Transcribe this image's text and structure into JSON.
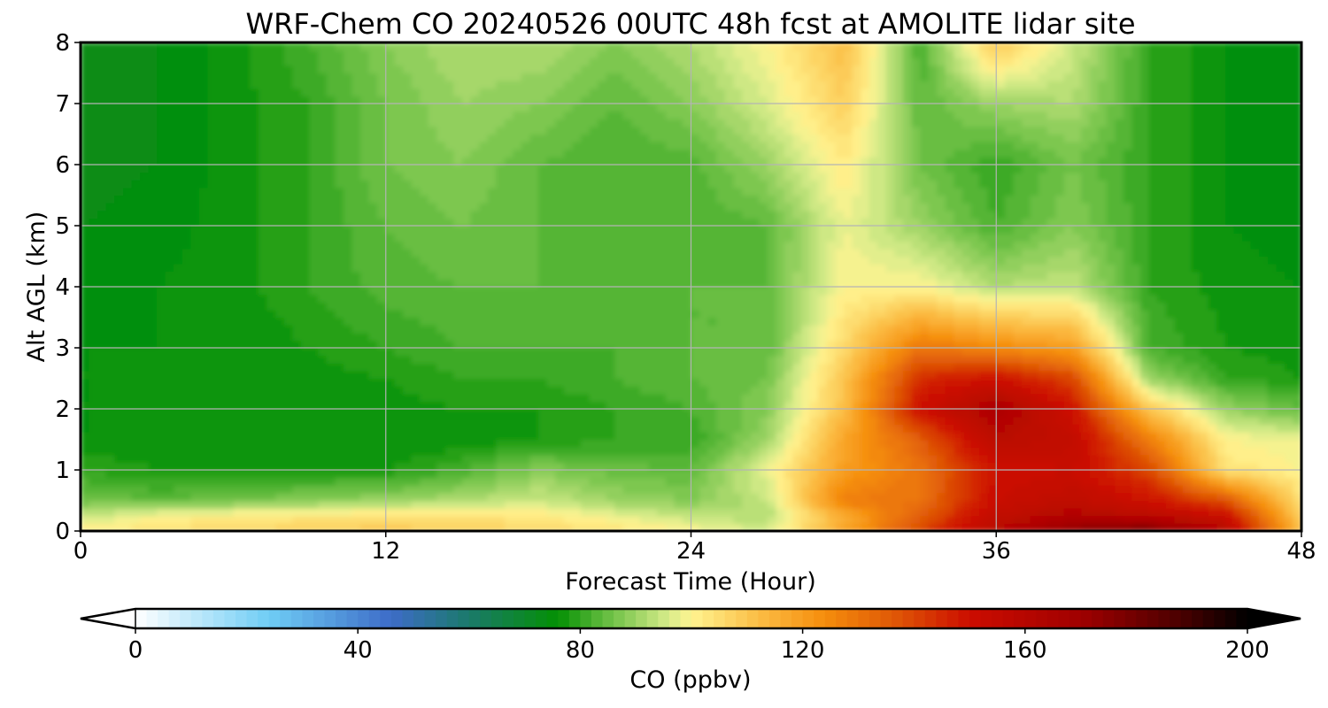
{
  "chart_data": {
    "type": "heatmap",
    "title": "WRF-Chem CO  20240526 00UTC 48h fcst at AMOLITE lidar site",
    "xlabel": "Forecast Time (Hour)",
    "ylabel": "Alt AGL (km)",
    "xlim": [
      0,
      48
    ],
    "ylim": [
      0,
      8
    ],
    "x_ticks": [
      0,
      12,
      24,
      36,
      48
    ],
    "y_ticks": [
      0,
      1,
      2,
      3,
      4,
      5,
      6,
      7,
      8
    ],
    "grid": true,
    "x_hours": [
      0,
      3,
      6,
      9,
      12,
      15,
      18,
      21,
      24,
      27,
      30,
      33,
      36,
      39,
      42,
      45,
      48
    ],
    "altitudes_km": [
      0,
      0.25,
      0.5,
      1,
      1.5,
      2,
      2.5,
      3,
      4,
      5,
      6,
      7,
      8
    ],
    "co_ppbv": [
      [
        102,
        104,
        106,
        108,
        110,
        108,
        106,
        104,
        100,
        96,
        118,
        140,
        160,
        175,
        180,
        160,
        112
      ],
      [
        94,
        100,
        102,
        103,
        104,
        104,
        102,
        98,
        94,
        92,
        116,
        135,
        155,
        162,
        158,
        152,
        108
      ],
      [
        86,
        84,
        86,
        88,
        90,
        92,
        95,
        90,
        88,
        94,
        128,
        130,
        152,
        156,
        150,
        138,
        104
      ],
      [
        80,
        78,
        78,
        78,
        78,
        82,
        88,
        85,
        84,
        98,
        120,
        130,
        150,
        152,
        140,
        104,
        100
      ],
      [
        76,
        76,
        76,
        76,
        76,
        76,
        78,
        80,
        80,
        90,
        118,
        135,
        158,
        155,
        128,
        100,
        98
      ],
      [
        76,
        76,
        76,
        76,
        77,
        78,
        78,
        80,
        82,
        88,
        112,
        150,
        165,
        150,
        110,
        90,
        84
      ],
      [
        76,
        76,
        76,
        77,
        78,
        80,
        80,
        82,
        84,
        86,
        110,
        145,
        150,
        140,
        90,
        80,
        78
      ],
      [
        76,
        76,
        76,
        78,
        80,
        82,
        82,
        82,
        84,
        84,
        106,
        130,
        125,
        120,
        82,
        78,
        77
      ],
      [
        75,
        76,
        77,
        80,
        83,
        84,
        84,
        84,
        84,
        84,
        100,
        100,
        92,
        94,
        80,
        77,
        76
      ],
      [
        74,
        75,
        77,
        80,
        84,
        86,
        84,
        82,
        82,
        84,
        98,
        90,
        82,
        88,
        80,
        76,
        75
      ],
      [
        73,
        74,
        77,
        80,
        86,
        88,
        84,
        82,
        83,
        90,
        102,
        86,
        80,
        86,
        80,
        76,
        74
      ],
      [
        72,
        74,
        77,
        80,
        86,
        90,
        88,
        84,
        88,
        96,
        108,
        84,
        90,
        92,
        80,
        76,
        74
      ],
      [
        72,
        74,
        77,
        82,
        88,
        92,
        92,
        88,
        92,
        100,
        112,
        82,
        110,
        95,
        80,
        76,
        74
      ]
    ],
    "colorbar": {
      "label": "CO  (ppbv)",
      "min": 0,
      "max": 200,
      "step": 2,
      "ticks": [
        0,
        40,
        80,
        120,
        160,
        200
      ],
      "extend": "both",
      "colormap": [
        [
          0,
          "#ffffff"
        ],
        [
          24,
          "#6fcdf5"
        ],
        [
          46,
          "#3d6cc8"
        ],
        [
          60,
          "#1a7a6a"
        ],
        [
          76,
          "#049004"
        ],
        [
          84,
          "#5fba3c"
        ],
        [
          96,
          "#d8ec8a"
        ],
        [
          100,
          "#fff490"
        ],
        [
          112,
          "#fbbd45"
        ],
        [
          124,
          "#f58d0c"
        ],
        [
          136,
          "#e05a06"
        ],
        [
          150,
          "#cc0d00"
        ],
        [
          170,
          "#a00000"
        ],
        [
          188,
          "#4a0000"
        ],
        [
          200,
          "#000000"
        ]
      ]
    }
  }
}
